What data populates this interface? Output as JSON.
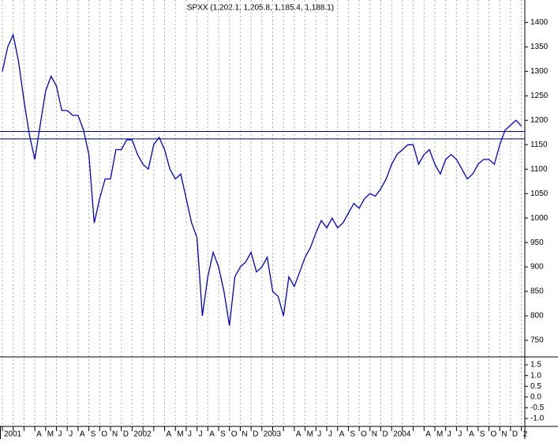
{
  "chart_data": [
    {
      "type": "line",
      "title": "SPXX (1,202.1, 1,205.8, 1,185.4, 1,188.1)",
      "categories": [
        "2001",
        null,
        null,
        null,
        null,
        null,
        "A",
        null,
        "M",
        null,
        "J",
        null,
        "J",
        null,
        "A",
        null,
        "S",
        null,
        "O",
        null,
        "N",
        null,
        "D",
        null,
        "2002",
        null,
        null,
        null,
        null,
        null,
        "A",
        null,
        "M",
        null,
        "J",
        null,
        "J",
        null,
        "A",
        null,
        "S",
        null,
        "O",
        null,
        "N",
        null,
        "D",
        null,
        "2003",
        null,
        null,
        null,
        null,
        null,
        "A",
        null,
        "M",
        null,
        "J",
        null,
        "J",
        null,
        "A",
        null,
        "S",
        null,
        "O",
        null,
        "N",
        null,
        "D",
        null,
        "2004",
        null,
        null,
        null,
        null,
        null,
        "A",
        null,
        "M",
        null,
        "J",
        null,
        "J",
        null,
        "A",
        null,
        "S",
        null,
        "O",
        null,
        "N",
        null,
        "D",
        null,
        "2"
      ],
      "series": [
        {
          "name": "SPXX",
          "color": "#0000cc",
          "values": [
            1300,
            1350,
            1375,
            1320,
            1240,
            1170,
            1120,
            1190,
            1260,
            1290,
            1270,
            1220,
            1220,
            1210,
            1210,
            1180,
            1130,
            990,
            1040,
            1080,
            1080,
            1140,
            1140,
            1160,
            1160,
            1130,
            1110,
            1100,
            1150,
            1165,
            1140,
            1100,
            1080,
            1090,
            1040,
            990,
            960,
            800,
            880,
            930,
            900,
            850,
            780,
            880,
            900,
            910,
            930,
            890,
            900,
            920,
            850,
            840,
            800,
            880,
            860,
            890,
            920,
            940,
            970,
            995,
            980,
            1000,
            980,
            990,
            1010,
            1030,
            1020,
            1040,
            1050,
            1045,
            1060,
            1080,
            1110,
            1130,
            1140,
            1150,
            1150,
            1110,
            1130,
            1140,
            1110,
            1090,
            1120,
            1130,
            1120,
            1100,
            1080,
            1090,
            1110,
            1120,
            1120,
            1110,
            1150,
            1180,
            1190,
            1200,
            1188
          ]
        }
      ],
      "reference_lines": [
        1177,
        1162
      ],
      "reference_color": "#000080",
      "ylim": [
        716,
        1446
      ],
      "yticks": [
        750,
        800,
        850,
        900,
        950,
        1000,
        1050,
        1100,
        1150,
        1200,
        1250,
        1300,
        1350,
        1400
      ],
      "grid": true
    },
    {
      "type": "line",
      "series": [],
      "ylim": [
        -1.37,
        1.87
      ],
      "yticks": [
        {
          "value": 1.5,
          "label": "1.5"
        },
        {
          "value": 1,
          "label": "1.0"
        },
        {
          "value": 0.5,
          "label": "0.5"
        },
        {
          "value": 0,
          "label": "0.0"
        },
        {
          "value": -0.5,
          "label": "-0.5"
        },
        {
          "value": -1,
          "label": "-1.0"
        }
      ]
    }
  ]
}
